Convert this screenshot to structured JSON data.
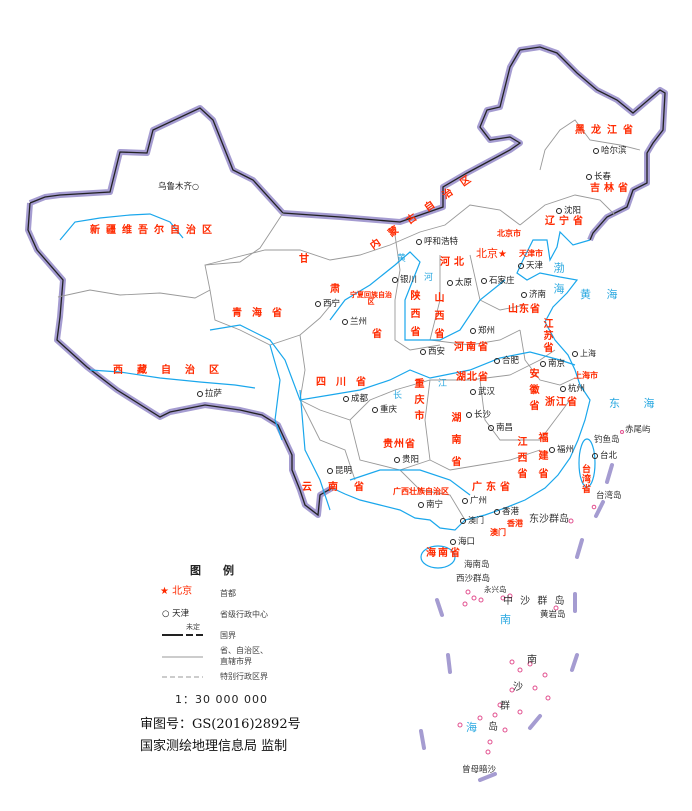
{
  "provinces": [
    "新疆维吾尔自治区",
    "西藏自治区",
    "青海省",
    "甘",
    "肃",
    "省",
    "内蒙古自治区",
    "黑龙江省",
    "吉林省",
    "辽宁省",
    "河北",
    "北京市",
    "天津市",
    "山西省",
    "山东省",
    "河南省",
    "陕西省",
    "宁夏回族自治区",
    "四川省",
    "重庆市",
    "湖北省",
    "安徽省",
    "江苏省",
    "上海市",
    "浙江省",
    "湖南省",
    "江西省",
    "福建省",
    "贵州省",
    "云南省",
    "广西壮族自治区",
    "广东省",
    "香港",
    "澳门",
    "海南省",
    "台湾省"
  ],
  "cities": [
    "乌鲁木齐",
    "拉萨",
    "西宁",
    "兰州",
    "银川",
    "呼和浩特",
    "天津",
    "石家庄",
    "太原",
    "济南",
    "郑州",
    "西安",
    "成都",
    "重庆",
    "武汉",
    "合肥",
    "南京",
    "上海",
    "杭州",
    "长沙",
    "南昌",
    "福州",
    "台北",
    "贵阳",
    "昆明",
    "南宁",
    "广州",
    "香港",
    "澳门",
    "海口",
    "哈尔滨",
    "长春",
    "沈阳"
  ],
  "capital": "北京",
  "islands": [
    "台湾岛",
    "钓鱼岛",
    "赤尾屿",
    "海南岛",
    "东沙群岛",
    "西沙群岛",
    "永兴岛",
    "中 沙 群 岛",
    "黄岩岛",
    "南",
    "沙",
    "群",
    "岛",
    "曾母暗沙"
  ],
  "seas": [
    "渤海",
    "黄 海",
    "东 海",
    "南",
    "海",
    "黄",
    "河",
    "长",
    "江"
  ],
  "legend": {
    "title": "图例",
    "capital_sample": "北京",
    "capital_desc": "首都",
    "center_sample": "天津",
    "center_desc": "省级行政中心",
    "undetermined": "未定",
    "border_desc": "国界",
    "province_border_desc_1": "省、自治区、",
    "province_border_desc_2": "直辖市界",
    "sar_border_desc": "特别行政区界",
    "scale": "1：30 000 000"
  },
  "footer": {
    "approval": "审图号：GS(2016)2892号",
    "publisher": "国家测绘地理信息局 监制"
  },
  "colors": {
    "border": "#a59cd1",
    "province_line": "#999999",
    "river": "#1aa7ec",
    "province_label": "#ff2a00",
    "island": "#e2508f"
  }
}
